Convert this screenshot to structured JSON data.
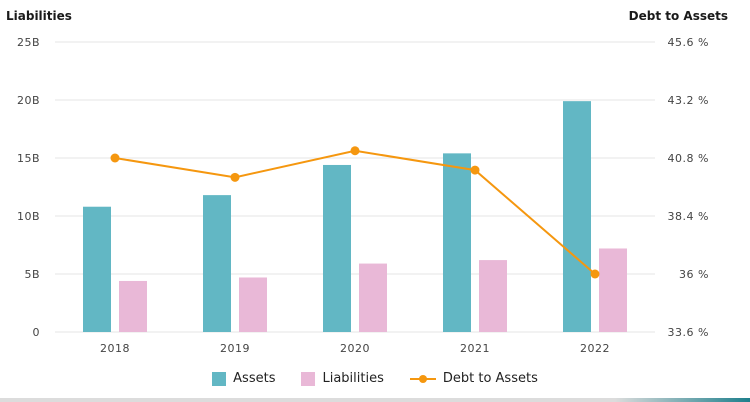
{
  "chart_data": {
    "type": "bar",
    "categories": [
      "2018",
      "2019",
      "2020",
      "2021",
      "2022"
    ],
    "left_axis": {
      "title": "Liabilities",
      "ticks": [
        "0",
        "5B",
        "10B",
        "15B",
        "20B",
        "25B"
      ],
      "ylim": [
        0,
        25
      ]
    },
    "right_axis": {
      "title": "Debt to Assets",
      "ticks": [
        "33.6 %",
        "36 %",
        "38.4 %",
        "40.8 %",
        "43.2 %",
        "45.6 %"
      ],
      "ylim": [
        33.6,
        45.6
      ]
    },
    "series": [
      {
        "name": "Assets",
        "type": "bar",
        "axis": "left",
        "color": "#62b7c4",
        "values": [
          10.8,
          11.8,
          14.4,
          15.4,
          19.9
        ]
      },
      {
        "name": "Liabilities",
        "type": "bar",
        "axis": "left",
        "color": "#e9b8d7",
        "values": [
          4.4,
          4.7,
          5.9,
          6.2,
          7.2
        ]
      },
      {
        "name": "Debt to Assets",
        "type": "line",
        "axis": "right",
        "color": "#f5970f",
        "values": [
          40.8,
          40.0,
          41.1,
          40.3,
          36.0
        ]
      }
    ],
    "grid": true,
    "legend": "bottom"
  }
}
